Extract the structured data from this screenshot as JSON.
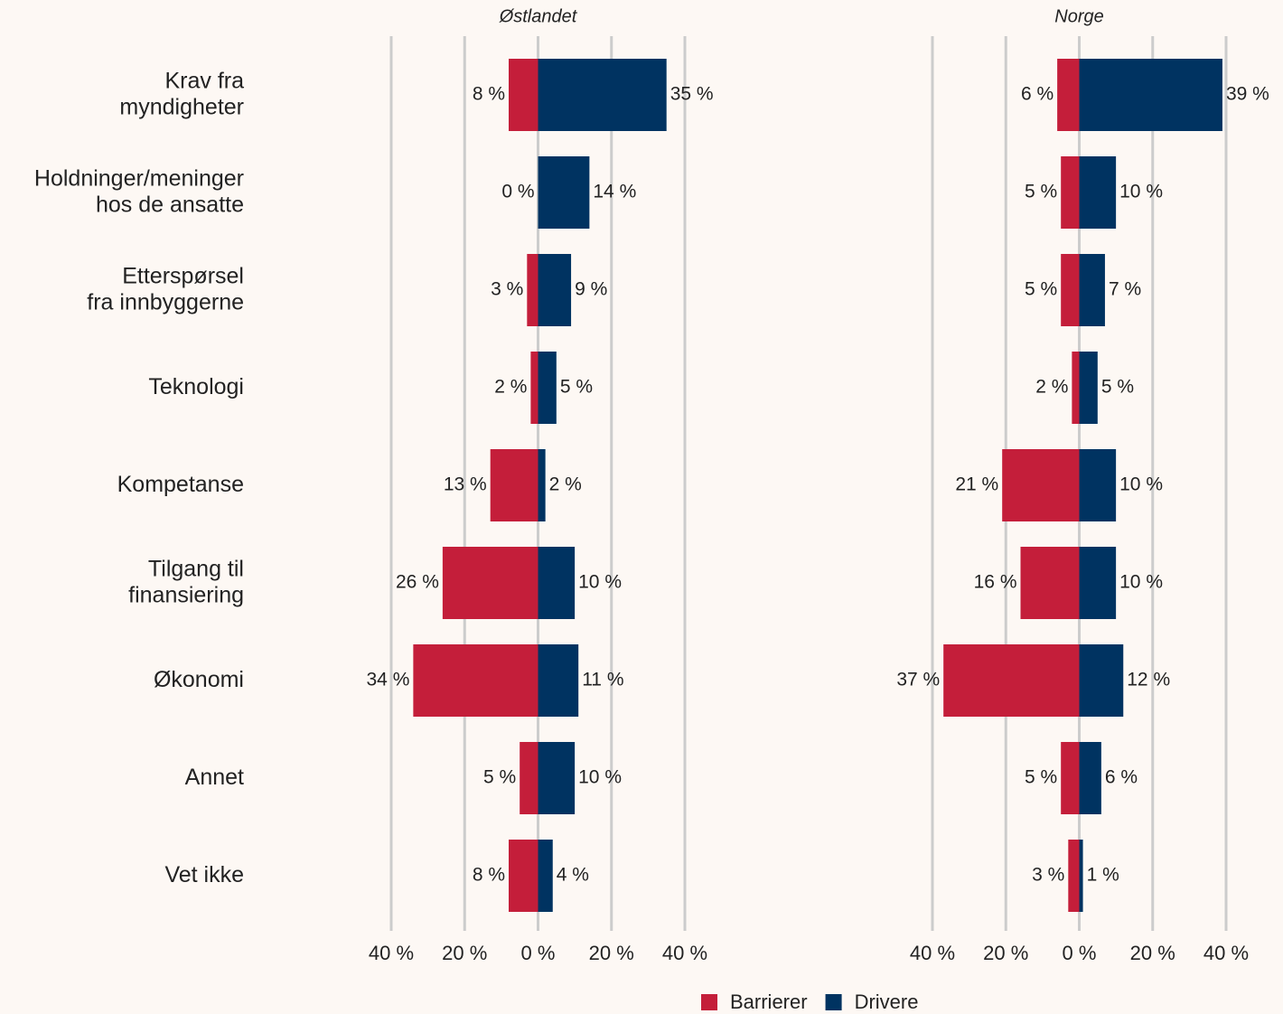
{
  "chart_data": {
    "type": "diverging-bar",
    "categories": [
      "Krav fra\nmyndigheter",
      "Holdninger/meninger\nhos de ansatte",
      "Etterspørsel\nfra innbyggerne",
      "Teknologi",
      "Kompetanse",
      "Tilgang til\nfinansiering",
      "Økonomi",
      "Annet",
      "Vet ikke"
    ],
    "xlim": [
      -40,
      40
    ],
    "xticks": [
      {
        "value": -40,
        "label": "40 %"
      },
      {
        "value": -20,
        "label": "20 %"
      },
      {
        "value": 0,
        "label": "0 %"
      },
      {
        "value": 20,
        "label": "20 %"
      },
      {
        "value": 40,
        "label": "40 %"
      }
    ],
    "grid": true,
    "legend": "bottom",
    "legend_names": [
      {
        "name": "Barrierer",
        "color": "#c41e3a"
      },
      {
        "name": "Drivere",
        "color": "#003361"
      }
    ],
    "panels": [
      {
        "title": "Østlandet",
        "series": [
          {
            "name": "Barrierer",
            "color": "#c41e3a",
            "values": [
              -8,
              0,
              -3,
              -2,
              -13,
              -26,
              -34,
              -5,
              -8
            ],
            "value_labels": [
              "8 %",
              "0 %",
              "3 %",
              "2 %",
              "13 %",
              "26 %",
              "34 %",
              "5 %",
              "8 %"
            ]
          },
          {
            "name": "Drivere",
            "color": "#003361",
            "values": [
              35,
              14,
              9,
              5,
              2,
              10,
              11,
              10,
              4
            ],
            "value_labels": [
              "35 %",
              "14 %",
              "9 %",
              "5 %",
              "2 %",
              "10 %",
              "11 %",
              "10 %",
              "4 %"
            ]
          }
        ]
      },
      {
        "title": "Norge",
        "series": [
          {
            "name": "Barrierer",
            "color": "#c41e3a",
            "values": [
              -6,
              -5,
              -5,
              -2,
              -21,
              -16,
              -37,
              -5,
              -3
            ],
            "value_labels": [
              "6 %",
              "5 %",
              "5 %",
              "2 %",
              "21 %",
              "16 %",
              "37 %",
              "5 %",
              "3 %"
            ]
          },
          {
            "name": "Drivere",
            "color": "#003361",
            "values": [
              39,
              10,
              7,
              5,
              10,
              10,
              12,
              6,
              1
            ],
            "value_labels": [
              "39 %",
              "10 %",
              "7 %",
              "5 %",
              "10 %",
              "10 %",
              "12 %",
              "6 %",
              "1 %"
            ]
          }
        ]
      }
    ]
  }
}
